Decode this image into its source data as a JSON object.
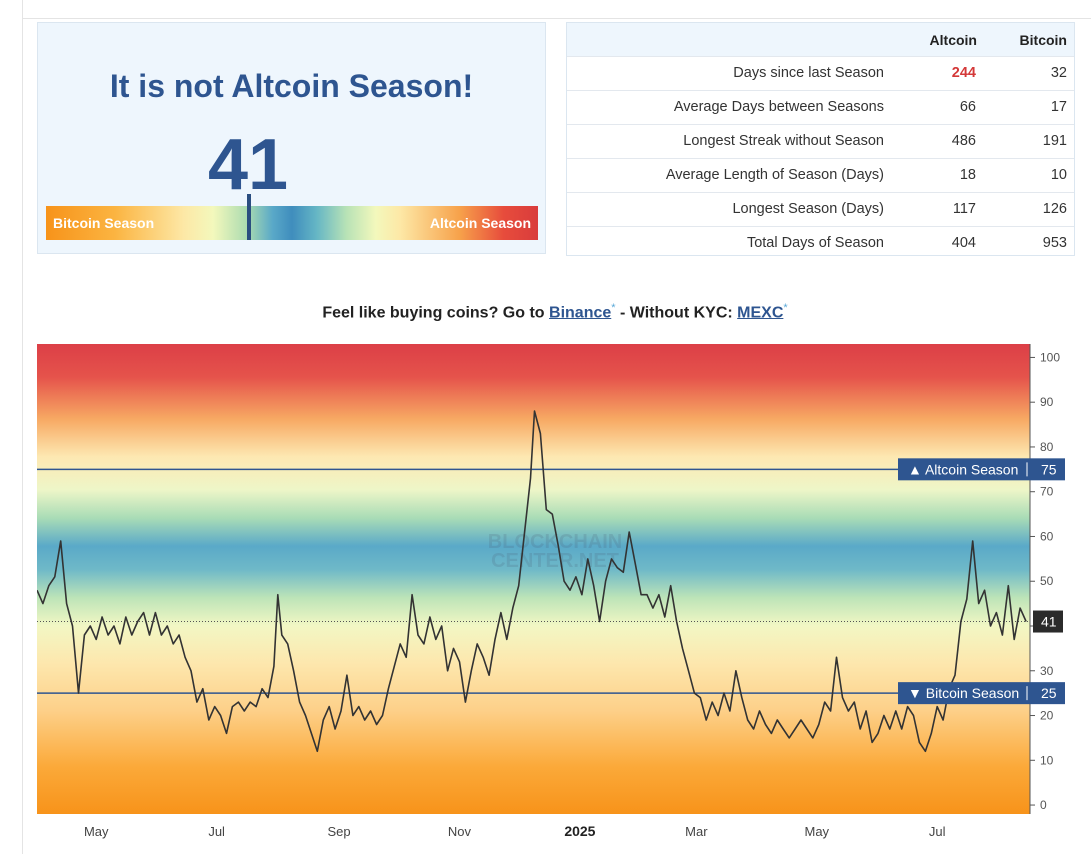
{
  "status": {
    "title": "It is not Altcoin Season!",
    "index_value": "41",
    "scale_left_label": "Bitcoin Season",
    "scale_right_label": "Altcoin Season",
    "marker_fraction": 0.41
  },
  "stats": {
    "headers": {
      "altcoin": "Altcoin",
      "bitcoin": "Bitcoin"
    },
    "rows": [
      {
        "label": "Days since last Season",
        "altcoin": "244",
        "bitcoin": "32"
      },
      {
        "label": "Average Days between Seasons",
        "altcoin": "66",
        "bitcoin": "17"
      },
      {
        "label": "Longest Streak without Season",
        "altcoin": "486",
        "bitcoin": "191"
      },
      {
        "label": "Average Length of Season (Days)",
        "altcoin": "18",
        "bitcoin": "10"
      },
      {
        "label": "Longest Season (Days)",
        "altcoin": "117",
        "bitcoin": "126"
      },
      {
        "label": "Total Days of Season",
        "altcoin": "404",
        "bitcoin": "953"
      }
    ],
    "highlight_color": "#d43838"
  },
  "promo": {
    "prefix": "Feel like buying coins? Go to ",
    "binance_label": "Binance",
    "star": "*",
    "middle": " - Without KYC: ",
    "mexc_label": "MEXC"
  },
  "colors": {
    "brand_blue": "#2e5590",
    "bitcoin_orange": "#f7931a",
    "altcoin_red": "#d93c3c",
    "line": "#333333",
    "threshold_tag": "#2e5590"
  },
  "chart_data": {
    "type": "line",
    "x_start": "2024-04-01",
    "x_end": "2025-08-17",
    "ylim": [
      -2,
      103
    ],
    "y_ticks": [
      0,
      10,
      20,
      30,
      40,
      50,
      60,
      70,
      80,
      90,
      100
    ],
    "x_ticks": [
      {
        "date": "2024-05-01",
        "label": "May"
      },
      {
        "date": "2024-07-01",
        "label": "Jul"
      },
      {
        "date": "2024-09-01",
        "label": "Sep"
      },
      {
        "date": "2024-11-01",
        "label": "Nov"
      },
      {
        "date": "2025-01-01",
        "label": "2025",
        "bold": true
      },
      {
        "date": "2025-03-01",
        "label": "Mar"
      },
      {
        "date": "2025-05-01",
        "label": "May"
      },
      {
        "date": "2025-07-01",
        "label": "Jul"
      }
    ],
    "thresholds": [
      {
        "value": 75,
        "label": "▲ Altcoin Season",
        "value_label": "75"
      },
      {
        "value": 25,
        "label": "▼ Bitcoin Season",
        "value_label": "25"
      }
    ],
    "current": {
      "value": 41,
      "label": "41"
    },
    "watermark": [
      "BLOCKCHAIN",
      "CENTER.NET"
    ],
    "series": [
      {
        "points": [
          [
            "2024-04-01",
            48
          ],
          [
            "2024-04-04",
            45
          ],
          [
            "2024-04-07",
            49
          ],
          [
            "2024-04-10",
            51
          ],
          [
            "2024-04-13",
            59
          ],
          [
            "2024-04-16",
            45
          ],
          [
            "2024-04-19",
            40
          ],
          [
            "2024-04-22",
            25
          ],
          [
            "2024-04-25",
            38
          ],
          [
            "2024-04-28",
            40
          ],
          [
            "2024-05-01",
            37
          ],
          [
            "2024-05-04",
            42
          ],
          [
            "2024-05-07",
            38
          ],
          [
            "2024-05-10",
            40
          ],
          [
            "2024-05-13",
            36
          ],
          [
            "2024-05-16",
            42
          ],
          [
            "2024-05-19",
            38
          ],
          [
            "2024-05-22",
            41
          ],
          [
            "2024-05-25",
            43
          ],
          [
            "2024-05-28",
            38
          ],
          [
            "2024-05-31",
            43
          ],
          [
            "2024-06-03",
            38
          ],
          [
            "2024-06-06",
            40
          ],
          [
            "2024-06-09",
            36
          ],
          [
            "2024-06-12",
            38
          ],
          [
            "2024-06-15",
            33
          ],
          [
            "2024-06-18",
            30
          ],
          [
            "2024-06-21",
            23
          ],
          [
            "2024-06-24",
            26
          ],
          [
            "2024-06-27",
            19
          ],
          [
            "2024-06-30",
            22
          ],
          [
            "2024-07-03",
            20
          ],
          [
            "2024-07-06",
            16
          ],
          [
            "2024-07-09",
            22
          ],
          [
            "2024-07-12",
            23
          ],
          [
            "2024-07-15",
            21
          ],
          [
            "2024-07-18",
            23
          ],
          [
            "2024-07-21",
            22
          ],
          [
            "2024-07-24",
            26
          ],
          [
            "2024-07-27",
            24
          ],
          [
            "2024-07-30",
            31
          ],
          [
            "2024-08-01",
            47
          ],
          [
            "2024-08-03",
            38
          ],
          [
            "2024-08-06",
            36
          ],
          [
            "2024-08-09",
            30
          ],
          [
            "2024-08-12",
            23
          ],
          [
            "2024-08-15",
            20
          ],
          [
            "2024-08-18",
            16
          ],
          [
            "2024-08-21",
            12
          ],
          [
            "2024-08-24",
            19
          ],
          [
            "2024-08-27",
            22
          ],
          [
            "2024-08-30",
            17
          ],
          [
            "2024-09-02",
            21
          ],
          [
            "2024-09-05",
            29
          ],
          [
            "2024-09-08",
            20
          ],
          [
            "2024-09-11",
            22
          ],
          [
            "2024-09-14",
            19
          ],
          [
            "2024-09-17",
            21
          ],
          [
            "2024-09-20",
            18
          ],
          [
            "2024-09-23",
            20
          ],
          [
            "2024-09-26",
            26
          ],
          [
            "2024-09-29",
            31
          ],
          [
            "2024-10-02",
            36
          ],
          [
            "2024-10-05",
            33
          ],
          [
            "2024-10-08",
            47
          ],
          [
            "2024-10-11",
            38
          ],
          [
            "2024-10-14",
            36
          ],
          [
            "2024-10-17",
            42
          ],
          [
            "2024-10-20",
            37
          ],
          [
            "2024-10-23",
            40
          ],
          [
            "2024-10-26",
            30
          ],
          [
            "2024-10-29",
            35
          ],
          [
            "2024-11-01",
            32
          ],
          [
            "2024-11-04",
            23
          ],
          [
            "2024-11-07",
            30
          ],
          [
            "2024-11-10",
            36
          ],
          [
            "2024-11-13",
            33
          ],
          [
            "2024-11-16",
            29
          ],
          [
            "2024-11-19",
            37
          ],
          [
            "2024-11-22",
            43
          ],
          [
            "2024-11-25",
            37
          ],
          [
            "2024-11-28",
            44
          ],
          [
            "2024-12-01",
            49
          ],
          [
            "2024-12-04",
            61
          ],
          [
            "2024-12-07",
            73
          ],
          [
            "2024-12-09",
            88
          ],
          [
            "2024-12-12",
            83
          ],
          [
            "2024-12-15",
            66
          ],
          [
            "2024-12-18",
            65
          ],
          [
            "2024-12-21",
            58
          ],
          [
            "2024-12-24",
            50
          ],
          [
            "2024-12-27",
            48
          ],
          [
            "2024-12-30",
            51
          ],
          [
            "2025-01-02",
            47
          ],
          [
            "2025-01-05",
            55
          ],
          [
            "2025-01-08",
            49
          ],
          [
            "2025-01-11",
            41
          ],
          [
            "2025-01-14",
            50
          ],
          [
            "2025-01-17",
            55
          ],
          [
            "2025-01-20",
            53
          ],
          [
            "2025-01-23",
            52
          ],
          [
            "2025-01-26",
            61
          ],
          [
            "2025-01-29",
            54
          ],
          [
            "2025-02-01",
            47
          ],
          [
            "2025-02-04",
            47
          ],
          [
            "2025-02-07",
            44
          ],
          [
            "2025-02-10",
            47
          ],
          [
            "2025-02-13",
            42
          ],
          [
            "2025-02-16",
            49
          ],
          [
            "2025-02-19",
            41
          ],
          [
            "2025-02-22",
            35
          ],
          [
            "2025-02-25",
            30
          ],
          [
            "2025-02-28",
            25
          ],
          [
            "2025-03-03",
            24
          ],
          [
            "2025-03-06",
            19
          ],
          [
            "2025-03-09",
            23
          ],
          [
            "2025-03-12",
            20
          ],
          [
            "2025-03-15",
            25
          ],
          [
            "2025-03-18",
            21
          ],
          [
            "2025-03-21",
            30
          ],
          [
            "2025-03-24",
            24
          ],
          [
            "2025-03-27",
            19
          ],
          [
            "2025-03-30",
            17
          ],
          [
            "2025-04-02",
            21
          ],
          [
            "2025-04-05",
            18
          ],
          [
            "2025-04-08",
            16
          ],
          [
            "2025-04-11",
            19
          ],
          [
            "2025-04-14",
            17
          ],
          [
            "2025-04-17",
            15
          ],
          [
            "2025-04-20",
            17
          ],
          [
            "2025-04-23",
            19
          ],
          [
            "2025-04-26",
            17
          ],
          [
            "2025-04-29",
            15
          ],
          [
            "2025-05-02",
            18
          ],
          [
            "2025-05-05",
            23
          ],
          [
            "2025-05-08",
            21
          ],
          [
            "2025-05-11",
            33
          ],
          [
            "2025-05-14",
            24
          ],
          [
            "2025-05-17",
            21
          ],
          [
            "2025-05-20",
            23
          ],
          [
            "2025-05-23",
            17
          ],
          [
            "2025-05-26",
            21
          ],
          [
            "2025-05-29",
            14
          ],
          [
            "2025-06-01",
            16
          ],
          [
            "2025-06-04",
            20
          ],
          [
            "2025-06-07",
            17
          ],
          [
            "2025-06-10",
            21
          ],
          [
            "2025-06-13",
            17
          ],
          [
            "2025-06-16",
            22
          ],
          [
            "2025-06-19",
            20
          ],
          [
            "2025-06-22",
            14
          ],
          [
            "2025-06-25",
            12
          ],
          [
            "2025-06-28",
            16
          ],
          [
            "2025-07-01",
            22
          ],
          [
            "2025-07-04",
            19
          ],
          [
            "2025-07-07",
            26
          ],
          [
            "2025-07-10",
            29
          ],
          [
            "2025-07-13",
            41
          ],
          [
            "2025-07-16",
            46
          ],
          [
            "2025-07-19",
            59
          ],
          [
            "2025-07-22",
            45
          ],
          [
            "2025-07-25",
            48
          ],
          [
            "2025-07-28",
            40
          ],
          [
            "2025-07-31",
            43
          ],
          [
            "2025-08-03",
            38
          ],
          [
            "2025-08-06",
            49
          ],
          [
            "2025-08-09",
            37
          ],
          [
            "2025-08-12",
            44
          ],
          [
            "2025-08-15",
            41
          ]
        ]
      }
    ]
  }
}
